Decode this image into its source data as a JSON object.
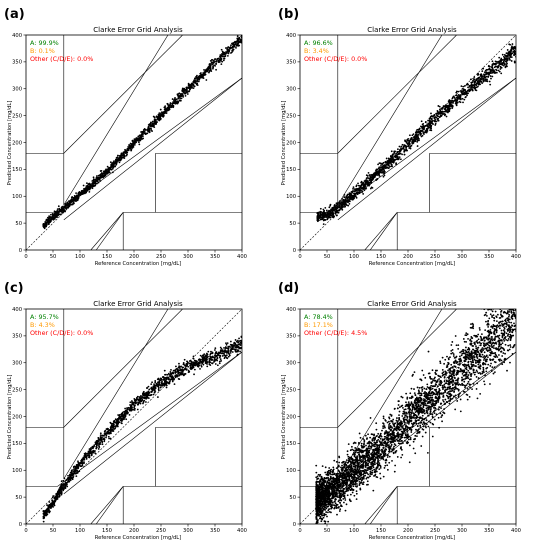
{
  "colors": {
    "zone_a": "#008000",
    "zone_b": "#ff9900",
    "zone_other": "#ff0000",
    "points": "#000000",
    "lines": "#000000"
  },
  "chart_data": [
    {
      "panel": "(a)",
      "type": "scatter",
      "title": "Clarke Error Grid Analysis",
      "xlabel": "Reference Concentration [mg/dL]",
      "ylabel": "Predicted Concentration [mg/dL]",
      "xlim": [
        0,
        400
      ],
      "ylim": [
        0,
        400
      ],
      "x_ticks": [
        "0",
        "50",
        "100",
        "150",
        "200",
        "250",
        "300",
        "350",
        "400"
      ],
      "y_ticks": [
        "0",
        "50",
        "100",
        "150",
        "200",
        "250",
        "300",
        "350",
        "400"
      ],
      "grid": false,
      "annotations": [
        {
          "text": "A: 99.9%",
          "zone": "A"
        },
        {
          "text": "B: 0.1%",
          "zone": "B"
        },
        {
          "text": "Other (C/D/E): 0.0%",
          "zone": "other"
        }
      ],
      "scatter_trend": [
        [
          32,
          45
        ],
        [
          50,
          62
        ],
        [
          70,
          78
        ],
        [
          100,
          103
        ],
        [
          150,
          146
        ],
        [
          200,
          198
        ],
        [
          250,
          250
        ],
        [
          300,
          300
        ],
        [
          350,
          348
        ],
        [
          400,
          395
        ]
      ],
      "scatter_spread": 5,
      "scatter_count": 1400
    },
    {
      "panel": "(b)",
      "type": "scatter",
      "title": "Clarke Error Grid Analysis",
      "xlabel": "Reference Concentration [mg/dL]",
      "ylabel": "Predicted Concentration [mg/dL]",
      "xlim": [
        0,
        400
      ],
      "ylim": [
        0,
        400
      ],
      "x_ticks": [
        "0",
        "50",
        "100",
        "150",
        "200",
        "250",
        "300",
        "350",
        "400"
      ],
      "y_ticks": [
        "0",
        "50",
        "100",
        "150",
        "200",
        "250",
        "300",
        "350",
        "400"
      ],
      "grid": false,
      "annotations": [
        {
          "text": "A: 96.6%",
          "zone": "A"
        },
        {
          "text": "B: 3.4%",
          "zone": "B"
        },
        {
          "text": "Other (C/D/E): 0.0%",
          "zone": "other"
        }
      ],
      "scatter_trend": [
        [
          32,
          63
        ],
        [
          50,
          66
        ],
        [
          70,
          78
        ],
        [
          100,
          104
        ],
        [
          150,
          148
        ],
        [
          200,
          196
        ],
        [
          250,
          244
        ],
        [
          300,
          290
        ],
        [
          350,
          330
        ],
        [
          400,
          372
        ]
      ],
      "scatter_spread": 8,
      "scatter_count": 1600
    },
    {
      "panel": "(c)",
      "type": "scatter",
      "title": "Clarke Error Grid Analysis",
      "xlabel": "Reference Concentration [mg/dL]",
      "ylabel": "Predicted Concentration [mg/dL]",
      "xlim": [
        0,
        400
      ],
      "ylim": [
        0,
        400
      ],
      "x_ticks": [
        "0",
        "50",
        "100",
        "150",
        "200",
        "250",
        "300",
        "350",
        "400"
      ],
      "y_ticks": [
        "0",
        "50",
        "100",
        "150",
        "200",
        "250",
        "300",
        "350",
        "400"
      ],
      "grid": false,
      "annotations": [
        {
          "text": "A: 95.7%",
          "zone": "A"
        },
        {
          "text": "B: 4.3%",
          "zone": "B"
        },
        {
          "text": "Other (C/D/E): 0.0%",
          "zone": "other"
        }
      ],
      "scatter_trend": [
        [
          32,
          15
        ],
        [
          50,
          40
        ],
        [
          70,
          72
        ],
        [
          100,
          112
        ],
        [
          150,
          170
        ],
        [
          200,
          222
        ],
        [
          250,
          262
        ],
        [
          300,
          292
        ],
        [
          350,
          312
        ],
        [
          400,
          335
        ]
      ],
      "scatter_spread": 7,
      "scatter_count": 1500
    },
    {
      "panel": "(d)",
      "type": "scatter",
      "title": "Clarke Error Grid Analysis",
      "xlabel": "Reference Concentration [mg/dL]",
      "ylabel": "Predicted Concentration [mg/dL]",
      "xlim": [
        0,
        400
      ],
      "ylim": [
        0,
        400
      ],
      "x_ticks": [
        "0",
        "50",
        "100",
        "150",
        "200",
        "250",
        "300",
        "350",
        "400"
      ],
      "y_ticks": [
        "0",
        "50",
        "100",
        "150",
        "200",
        "250",
        "300",
        "350",
        "400"
      ],
      "grid": false,
      "annotations": [
        {
          "text": "A: 78.4%",
          "zone": "A"
        },
        {
          "text": "B: 17.1%",
          "zone": "B"
        },
        {
          "text": "Other (C/D/E): 4.5%",
          "zone": "other"
        }
      ],
      "scatter_trend": [
        [
          30,
          45
        ],
        [
          50,
          55
        ],
        [
          70,
          70
        ],
        [
          100,
          100
        ],
        [
          150,
          142
        ],
        [
          200,
          192
        ],
        [
          250,
          240
        ],
        [
          300,
          290
        ],
        [
          350,
          335
        ],
        [
          400,
          380
        ]
      ],
      "scatter_spread": 30,
      "scatter_count": 4000
    }
  ]
}
